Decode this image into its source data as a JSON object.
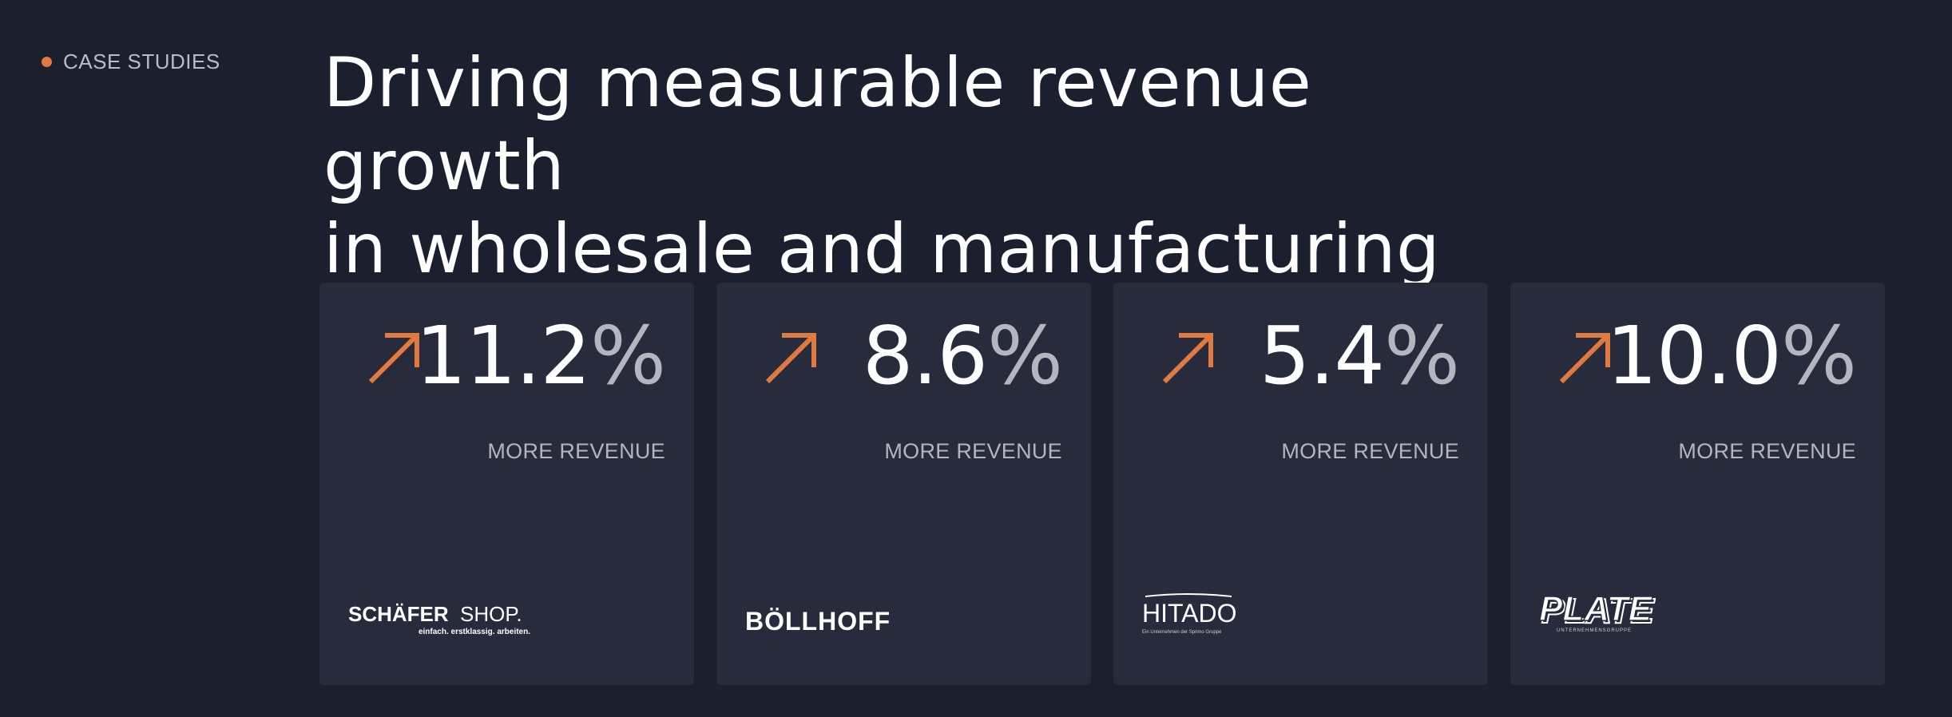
{
  "section": {
    "eyebrow": "CASE STUDIES"
  },
  "headline": {
    "line1": "Driving measurable revenue growth",
    "line2": "in wholesale and manufacturing"
  },
  "colors": {
    "background": "#1b1f2e",
    "card": "#272b3b",
    "accent": "#e07a3f",
    "muted": "#b3b6be"
  },
  "cards": [
    {
      "value": "11.2",
      "unit": "%",
      "label": "MORE REVENUE",
      "icon": "arrow-up-right-icon",
      "logo": {
        "name": "SCHÄFER SHOP",
        "main": "SCHÄFER",
        "secondary": "SHOP.",
        "tagline": "einfach. erstklassig. arbeiten."
      }
    },
    {
      "value": "8.6",
      "unit": "%",
      "label": "MORE REVENUE",
      "icon": "arrow-up-right-icon",
      "logo": {
        "name": "BÖLLHOFF",
        "main": "BÖLLHOFF"
      }
    },
    {
      "value": "5.4",
      "unit": "%",
      "label": "MORE REVENUE",
      "icon": "arrow-up-right-icon",
      "logo": {
        "name": "HITADO",
        "main": "HITADO",
        "tagline": "Ein Unternehmen der Sprimo Gruppe"
      }
    },
    {
      "value": "10.0",
      "unit": "%",
      "label": "MORE REVENUE",
      "icon": "arrow-up-right-icon",
      "logo": {
        "name": "PLATE",
        "main": "PLATE",
        "tagline": "UNTERNEHMENSGRUPPE"
      }
    }
  ]
}
